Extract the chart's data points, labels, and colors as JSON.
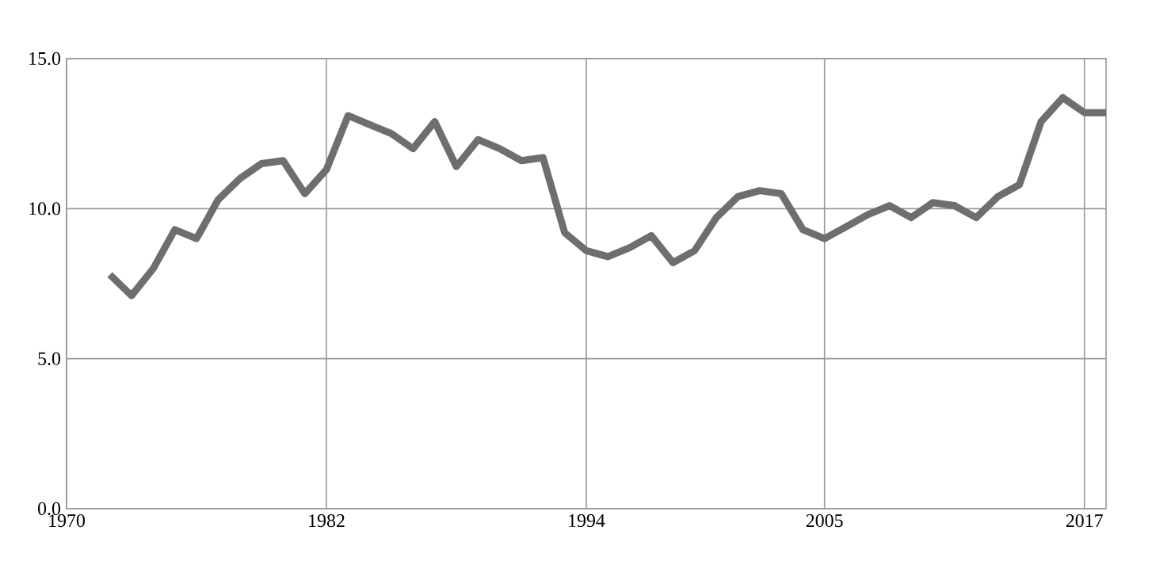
{
  "chart_data": {
    "type": "line",
    "color": "#6e6e6e",
    "x": [
      1972,
      1973,
      1974,
      1975,
      1976,
      1977,
      1978,
      1979,
      1980,
      1981,
      1982,
      1983,
      1984,
      1985,
      1986,
      1987,
      1988,
      1989,
      1990,
      1991,
      1992,
      1993,
      1994,
      1995,
      1996,
      1997,
      1998,
      1999,
      2000,
      2001,
      2002,
      2003,
      2004,
      2005,
      2006,
      2007,
      2008,
      2009,
      2010,
      2011,
      2012,
      2013,
      2014,
      2015,
      2016,
      2017,
      2018
    ],
    "values": [
      7.8,
      7.1,
      8.0,
      9.3,
      9.0,
      10.3,
      11.0,
      11.5,
      11.6,
      10.5,
      11.3,
      13.1,
      12.8,
      12.5,
      12.0,
      12.9,
      11.4,
      12.3,
      12.0,
      11.6,
      11.7,
      9.2,
      8.6,
      8.4,
      8.7,
      9.1,
      8.2,
      8.6,
      9.7,
      10.4,
      10.6,
      10.5,
      9.3,
      9.0,
      9.4,
      9.8,
      10.1,
      9.7,
      10.2,
      10.1,
      9.7,
      10.4,
      10.8,
      12.9,
      13.7,
      13.2,
      13.2
    ],
    "xlim": [
      1970,
      2018
    ],
    "ylim": [
      0,
      15
    ],
    "xticks": [
      1970,
      1982,
      1994,
      2005,
      2017
    ],
    "yticks": [
      {
        "value": 0,
        "label": "0.0"
      },
      {
        "value": 5,
        "label": "5.0"
      },
      {
        "value": 10,
        "label": "10.0"
      },
      {
        "value": 15,
        "label": "15.0"
      }
    ],
    "grid": true,
    "marker": "none",
    "line_style": "solid"
  }
}
